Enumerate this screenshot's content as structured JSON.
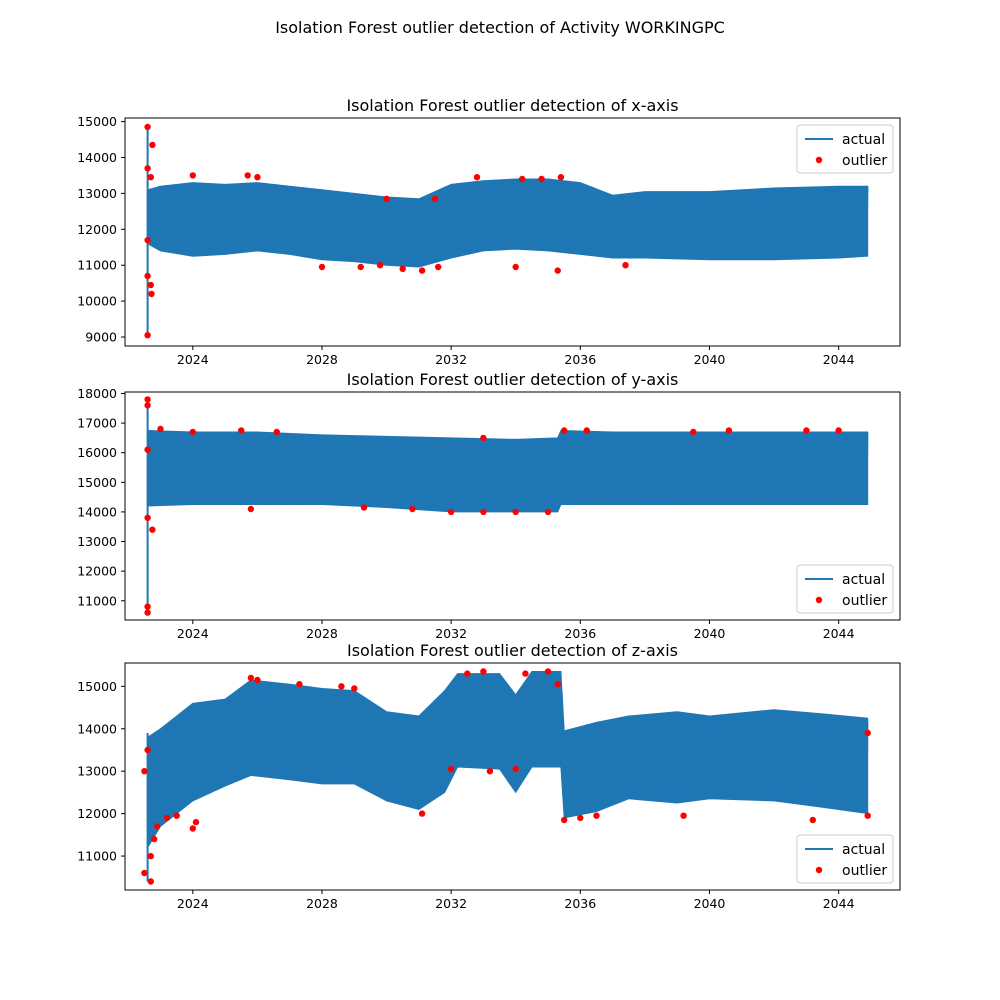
{
  "suptitle": "Isolation Forest outlier detection of Activity WORKINGPC",
  "colors": {
    "actual": "#1f77b4",
    "outlier": "#ff0000",
    "axes": "#000000",
    "background": "#ffffff"
  },
  "legend_labels": {
    "actual": "actual",
    "outlier": "outlier"
  },
  "chart_data": [
    {
      "type": "line",
      "title": "Isolation Forest outlier detection of x-axis",
      "xlabel": "",
      "ylabel": "",
      "grid": false,
      "legend_position": "upper right",
      "x_ticks": [
        "2024",
        "2028",
        "2032",
        "2036",
        "2040",
        "2044"
      ],
      "y_ticks": [
        9000,
        10000,
        11000,
        12000,
        13000,
        14000,
        15000
      ],
      "xlim": [
        2021.9,
        2045.9
      ],
      "ylim": [
        8750,
        15100
      ],
      "x_range": [
        2022.6,
        2044.9
      ],
      "series": [
        {
          "name": "actual",
          "band": [
            {
              "x": 2022.6,
              "lo": 11600,
              "hi": 13100
            },
            {
              "x": 2023.0,
              "lo": 11400,
              "hi": 13200
            },
            {
              "x": 2024.0,
              "lo": 11250,
              "hi": 13300
            },
            {
              "x": 2025.0,
              "lo": 11300,
              "hi": 13250
            },
            {
              "x": 2026.0,
              "lo": 11400,
              "hi": 13300
            },
            {
              "x": 2027.0,
              "lo": 11300,
              "hi": 13200
            },
            {
              "x": 2028.0,
              "lo": 11150,
              "hi": 13100
            },
            {
              "x": 2029.0,
              "lo": 11100,
              "hi": 13000
            },
            {
              "x": 2030.0,
              "lo": 11000,
              "hi": 12900
            },
            {
              "x": 2031.0,
              "lo": 10950,
              "hi": 12850
            },
            {
              "x": 2032.0,
              "lo": 11200,
              "hi": 13250
            },
            {
              "x": 2033.0,
              "lo": 11400,
              "hi": 13350
            },
            {
              "x": 2034.0,
              "lo": 11450,
              "hi": 13400
            },
            {
              "x": 2035.0,
              "lo": 11400,
              "hi": 13400
            },
            {
              "x": 2036.0,
              "lo": 11300,
              "hi": 13300
            },
            {
              "x": 2037.0,
              "lo": 11200,
              "hi": 12950
            },
            {
              "x": 2038.0,
              "lo": 11200,
              "hi": 13050
            },
            {
              "x": 2040.0,
              "lo": 11150,
              "hi": 13050
            },
            {
              "x": 2042.0,
              "lo": 11150,
              "hi": 13150
            },
            {
              "x": 2044.0,
              "lo": 11200,
              "hi": 13200
            },
            {
              "x": 2044.9,
              "lo": 11250,
              "hi": 13200
            }
          ],
          "spike": [
            9050,
            14850
          ]
        }
      ],
      "outliers": [
        [
          2022.6,
          14850
        ],
        [
          2022.75,
          14350
        ],
        [
          2022.6,
          13700
        ],
        [
          2022.7,
          13450
        ],
        [
          2022.6,
          11700
        ],
        [
          2022.6,
          10700
        ],
        [
          2022.7,
          10450
        ],
        [
          2022.72,
          10200
        ],
        [
          2022.6,
          9050
        ],
        [
          2024.0,
          13500
        ],
        [
          2025.7,
          13500
        ],
        [
          2026.0,
          13450
        ],
        [
          2028.0,
          10950
        ],
        [
          2029.2,
          10950
        ],
        [
          2029.8,
          11000
        ],
        [
          2030.5,
          10900
        ],
        [
          2031.1,
          10850
        ],
        [
          2031.6,
          10950
        ],
        [
          2030.0,
          12850
        ],
        [
          2031.5,
          12850
        ],
        [
          2032.8,
          13450
        ],
        [
          2034.0,
          10950
        ],
        [
          2034.2,
          13400
        ],
        [
          2034.8,
          13400
        ],
        [
          2035.3,
          10850
        ],
        [
          2035.4,
          13450
        ],
        [
          2037.4,
          11000
        ]
      ]
    },
    {
      "type": "line",
      "title": "Isolation Forest outlier detection of y-axis",
      "xlabel": "",
      "ylabel": "",
      "grid": false,
      "legend_position": "lower right",
      "x_ticks": [
        "2024",
        "2028",
        "2032",
        "2036",
        "2040",
        "2044"
      ],
      "y_ticks": [
        11000,
        12000,
        13000,
        14000,
        15000,
        16000,
        17000,
        18000
      ],
      "xlim": [
        2021.9,
        2045.9
      ],
      "ylim": [
        10350,
        18050
      ],
      "x_range": [
        2022.6,
        2044.9
      ],
      "series": [
        {
          "name": "actual",
          "band": [
            {
              "x": 2022.6,
              "lo": 14200,
              "hi": 16750
            },
            {
              "x": 2024.0,
              "lo": 14250,
              "hi": 16700
            },
            {
              "x": 2026.0,
              "lo": 14250,
              "hi": 16700
            },
            {
              "x": 2028.0,
              "lo": 14250,
              "hi": 16600
            },
            {
              "x": 2030.0,
              "lo": 14150,
              "hi": 16550
            },
            {
              "x": 2032.0,
              "lo": 14000,
              "hi": 16500
            },
            {
              "x": 2034.0,
              "lo": 14000,
              "hi": 16450
            },
            {
              "x": 2035.3,
              "lo": 14000,
              "hi": 16500
            },
            {
              "x": 2035.4,
              "lo": 14250,
              "hi": 16750
            },
            {
              "x": 2037.0,
              "lo": 14250,
              "hi": 16700
            },
            {
              "x": 2040.0,
              "lo": 14250,
              "hi": 16700
            },
            {
              "x": 2044.9,
              "lo": 14250,
              "hi": 16700
            }
          ],
          "spike": [
            10600,
            17800
          ]
        }
      ],
      "outliers": [
        [
          2022.6,
          17800
        ],
        [
          2022.6,
          17600
        ],
        [
          2022.6,
          16100
        ],
        [
          2022.6,
          13800
        ],
        [
          2022.75,
          13400
        ],
        [
          2022.6,
          10800
        ],
        [
          2022.6,
          10600
        ],
        [
          2023.0,
          16800
        ],
        [
          2024.0,
          16700
        ],
        [
          2025.5,
          16750
        ],
        [
          2025.8,
          14100
        ],
        [
          2026.6,
          16700
        ],
        [
          2029.3,
          14150
        ],
        [
          2030.8,
          14100
        ],
        [
          2032.0,
          14000
        ],
        [
          2033.0,
          14000
        ],
        [
          2034.0,
          14000
        ],
        [
          2035.0,
          14000
        ],
        [
          2033.0,
          16500
        ],
        [
          2035.5,
          16750
        ],
        [
          2036.2,
          16750
        ],
        [
          2039.5,
          16700
        ],
        [
          2040.6,
          16750
        ],
        [
          2043.0,
          16750
        ],
        [
          2044.0,
          16750
        ]
      ]
    },
    {
      "type": "line",
      "title": "Isolation Forest outlier detection of z-axis",
      "xlabel": "",
      "ylabel": "",
      "grid": false,
      "legend_position": "lower right",
      "x_ticks": [
        "2024",
        "2028",
        "2032",
        "2036",
        "2040",
        "2044"
      ],
      "y_ticks": [
        11000,
        12000,
        13000,
        14000,
        15000
      ],
      "xlim": [
        2021.9,
        2045.9
      ],
      "ylim": [
        10200,
        15550
      ],
      "x_range": [
        2022.6,
        2044.9
      ],
      "series": [
        {
          "name": "actual",
          "band": [
            {
              "x": 2022.6,
              "lo": 11200,
              "hi": 13800
            },
            {
              "x": 2023.0,
              "lo": 11700,
              "hi": 14000
            },
            {
              "x": 2024.0,
              "lo": 12300,
              "hi": 14600
            },
            {
              "x": 2025.0,
              "lo": 12650,
              "hi": 14700
            },
            {
              "x": 2025.8,
              "lo": 12900,
              "hi": 15150
            },
            {
              "x": 2027.0,
              "lo": 12800,
              "hi": 15050
            },
            {
              "x": 2028.0,
              "lo": 12700,
              "hi": 14950
            },
            {
              "x": 2029.0,
              "lo": 12700,
              "hi": 14900
            },
            {
              "x": 2030.0,
              "lo": 12300,
              "hi": 14400
            },
            {
              "x": 2031.0,
              "lo": 12100,
              "hi": 14300
            },
            {
              "x": 2031.8,
              "lo": 12500,
              "hi": 14900
            },
            {
              "x": 2032.2,
              "lo": 13100,
              "hi": 15300
            },
            {
              "x": 2033.5,
              "lo": 13050,
              "hi": 15300
            },
            {
              "x": 2034.0,
              "lo": 12500,
              "hi": 14800
            },
            {
              "x": 2034.5,
              "lo": 13100,
              "hi": 15350
            },
            {
              "x": 2035.4,
              "lo": 13100,
              "hi": 15350
            },
            {
              "x": 2035.5,
              "lo": 11900,
              "hi": 13950
            },
            {
              "x": 2036.5,
              "lo": 12050,
              "hi": 14150
            },
            {
              "x": 2037.5,
              "lo": 12350,
              "hi": 14300
            },
            {
              "x": 2039.0,
              "lo": 12250,
              "hi": 14400
            },
            {
              "x": 2040.0,
              "lo": 12350,
              "hi": 14300
            },
            {
              "x": 2042.0,
              "lo": 12300,
              "hi": 14450
            },
            {
              "x": 2043.5,
              "lo": 12150,
              "hi": 14350
            },
            {
              "x": 2044.9,
              "lo": 12000,
              "hi": 14250
            }
          ],
          "spike": [
            10400,
            13900
          ]
        }
      ],
      "outliers": [
        [
          2022.5,
          10600
        ],
        [
          2022.7,
          10400
        ],
        [
          2022.7,
          11000
        ],
        [
          2022.8,
          11400
        ],
        [
          2022.9,
          11700
        ],
        [
          2023.2,
          11900
        ],
        [
          2023.5,
          11950
        ],
        [
          2022.5,
          13000
        ],
        [
          2022.6,
          13500
        ],
        [
          2024.0,
          11650
        ],
        [
          2024.1,
          11800
        ],
        [
          2025.8,
          15200
        ],
        [
          2026.0,
          15150
        ],
        [
          2027.3,
          15050
        ],
        [
          2028.6,
          15000
        ],
        [
          2029.0,
          14950
        ],
        [
          2031.1,
          12000
        ],
        [
          2032.0,
          13050
        ],
        [
          2032.5,
          15300
        ],
        [
          2033.0,
          15350
        ],
        [
          2033.2,
          13000
        ],
        [
          2034.0,
          13050
        ],
        [
          2034.3,
          15300
        ],
        [
          2035.0,
          15350
        ],
        [
          2035.3,
          15050
        ],
        [
          2035.5,
          11850
        ],
        [
          2036.0,
          11900
        ],
        [
          2036.5,
          11950
        ],
        [
          2039.2,
          11950
        ],
        [
          2043.2,
          11850
        ],
        [
          2044.9,
          11950
        ],
        [
          2044.9,
          13900
        ]
      ]
    }
  ]
}
